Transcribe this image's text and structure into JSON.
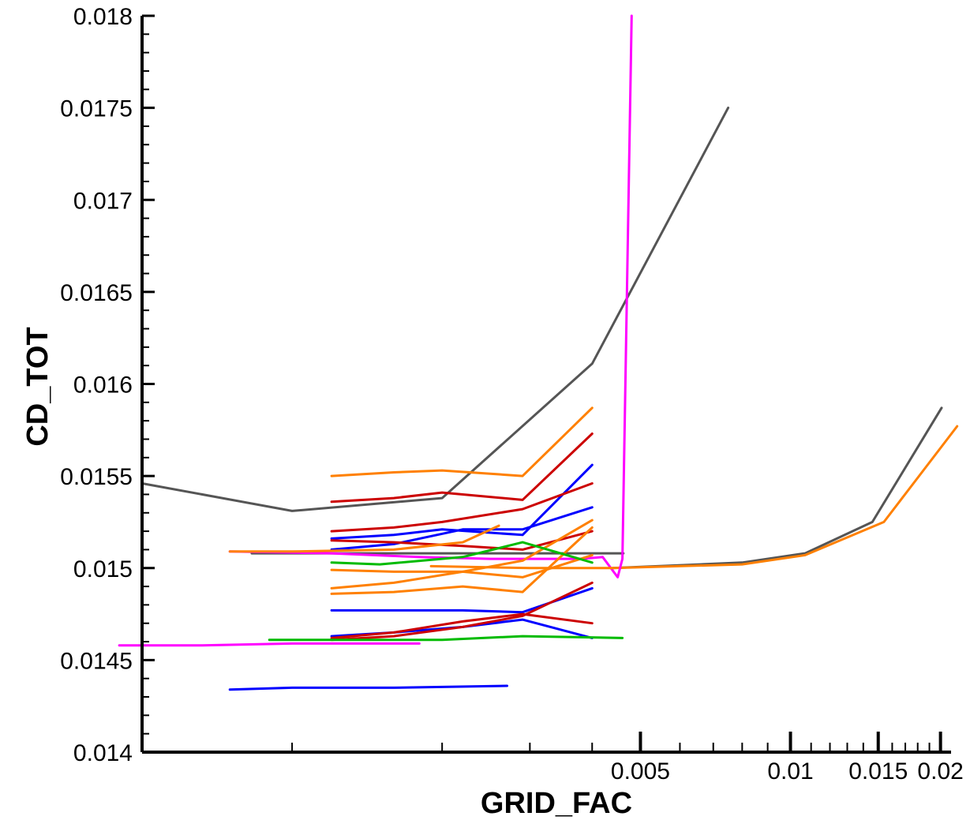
{
  "chart_data": {
    "type": "line",
    "title": "",
    "xlabel": "GRID_FAC",
    "ylabel": "CD_TOT",
    "x_scale": "log",
    "xlim": [
      0.0005,
      0.021
    ],
    "ylim": [
      0.014,
      0.018
    ],
    "grid": false,
    "x_ticks": [
      {
        "value": 0.005,
        "label": "0.005"
      },
      {
        "value": 0.01,
        "label": "0.01"
      },
      {
        "value": 0.015,
        "label": "0.015"
      },
      {
        "value": 0.02,
        "label": "0.02"
      }
    ],
    "x_minor_ticks": [
      0.001,
      0.002,
      0.003,
      0.004,
      0.006,
      0.007,
      0.008,
      0.009,
      0.011,
      0.012,
      0.013,
      0.014,
      0.016,
      0.017,
      0.018,
      0.019
    ],
    "y_ticks": [
      {
        "value": 0.014,
        "label": "0.014"
      },
      {
        "value": 0.0145,
        "label": "0.0145"
      },
      {
        "value": 0.015,
        "label": "0.015"
      },
      {
        "value": 0.0155,
        "label": "0.0155"
      },
      {
        "value": 0.016,
        "label": "0.016"
      },
      {
        "value": 0.0165,
        "label": "0.0165"
      },
      {
        "value": 0.017,
        "label": "0.017"
      },
      {
        "value": 0.0175,
        "label": "0.0175"
      },
      {
        "value": 0.018,
        "label": "0.018"
      }
    ],
    "series": [
      {
        "color": "#555555",
        "points": [
          [
            0.0005,
            0.01546
          ],
          [
            0.001,
            0.01531
          ],
          [
            0.002,
            0.01538
          ],
          [
            0.004,
            0.01611
          ],
          [
            0.0075,
            0.0175
          ]
        ]
      },
      {
        "color": "#555555",
        "points": [
          [
            0.00083,
            0.01508
          ],
          [
            0.00462,
            0.01508
          ]
        ]
      },
      {
        "color": "#555555",
        "points": [
          [
            0.0044,
            0.015
          ],
          [
            0.008,
            0.01503
          ],
          [
            0.0107,
            0.01508
          ],
          [
            0.0146,
            0.01525
          ],
          [
            0.0201,
            0.01587
          ]
        ]
      },
      {
        "color": "#ff8000",
        "points": [
          [
            0.0044,
            0.015
          ],
          [
            0.008,
            0.01502
          ],
          [
            0.0107,
            0.01507
          ],
          [
            0.0154,
            0.01525
          ],
          [
            0.0216,
            0.01577
          ]
        ]
      },
      {
        "color": "#ff00ff",
        "points": [
          [
            0.00045,
            0.01458
          ],
          [
            0.00066,
            0.01458
          ],
          [
            0.001,
            0.01459
          ],
          [
            0.0016,
            0.01459
          ],
          [
            0.0018,
            0.01459
          ]
        ]
      },
      {
        "color": "#ff00ff",
        "points": [
          [
            0.00075,
            0.01509
          ],
          [
            0.0012,
            0.01508
          ],
          [
            0.0018,
            0.01506
          ],
          [
            0.0025,
            0.01505
          ],
          [
            0.0038,
            0.01505
          ],
          [
            0.0042,
            0.01506
          ],
          [
            0.0045,
            0.01495
          ],
          [
            0.0046,
            0.01505
          ],
          [
            0.0048,
            0.018
          ]
        ]
      },
      {
        "color": "#0000ff",
        "points": [
          [
            0.00075,
            0.01434
          ],
          [
            0.001,
            0.01435
          ],
          [
            0.0016,
            0.01435
          ],
          [
            0.0027,
            0.01436
          ]
        ]
      },
      {
        "color": "#0000ff",
        "points": [
          [
            0.0012,
            0.01516
          ],
          [
            0.0016,
            0.01518
          ],
          [
            0.002,
            0.01521
          ],
          [
            0.0029,
            0.01518
          ],
          [
            0.004,
            0.01556
          ]
        ]
      },
      {
        "color": "#0000ff",
        "points": [
          [
            0.0012,
            0.0151
          ],
          [
            0.0016,
            0.01513
          ],
          [
            0.0022,
            0.01521
          ],
          [
            0.0029,
            0.01521
          ],
          [
            0.004,
            0.01533
          ]
        ]
      },
      {
        "color": "#0000ff",
        "points": [
          [
            0.0012,
            0.01477
          ],
          [
            0.0016,
            0.01477
          ],
          [
            0.0022,
            0.01477
          ],
          [
            0.0029,
            0.01476
          ],
          [
            0.004,
            0.01489
          ]
        ]
      },
      {
        "color": "#0000ff",
        "points": [
          [
            0.0012,
            0.01463
          ],
          [
            0.0016,
            0.01465
          ],
          [
            0.0022,
            0.01468
          ],
          [
            0.0029,
            0.01472
          ],
          [
            0.004,
            0.01462
          ]
        ]
      },
      {
        "color": "#cc0000",
        "points": [
          [
            0.0012,
            0.01536
          ],
          [
            0.0016,
            0.01538
          ],
          [
            0.002,
            0.01541
          ],
          [
            0.0029,
            0.01537
          ],
          [
            0.004,
            0.01573
          ]
        ]
      },
      {
        "color": "#cc0000",
        "points": [
          [
            0.0012,
            0.0152
          ],
          [
            0.0016,
            0.01522
          ],
          [
            0.002,
            0.01525
          ],
          [
            0.0029,
            0.01532
          ],
          [
            0.004,
            0.01546
          ]
        ]
      },
      {
        "color": "#cc0000",
        "points": [
          [
            0.0012,
            0.01515
          ],
          [
            0.0016,
            0.01514
          ],
          [
            0.0022,
            0.01512
          ],
          [
            0.0029,
            0.0151
          ],
          [
            0.004,
            0.0152
          ]
        ]
      },
      {
        "color": "#cc0000",
        "points": [
          [
            0.0012,
            0.01461
          ],
          [
            0.0016,
            0.01463
          ],
          [
            0.0022,
            0.01468
          ],
          [
            0.0029,
            0.01474
          ],
          [
            0.004,
            0.01492
          ]
        ]
      },
      {
        "color": "#cc0000",
        "points": [
          [
            0.0012,
            0.01462
          ],
          [
            0.0016,
            0.01465
          ],
          [
            0.0022,
            0.01471
          ],
          [
            0.0029,
            0.01475
          ],
          [
            0.004,
            0.0147
          ]
        ]
      },
      {
        "color": "#ff8000",
        "points": [
          [
            0.0012,
            0.0155
          ],
          [
            0.0016,
            0.01552
          ],
          [
            0.002,
            0.01553
          ],
          [
            0.0029,
            0.0155
          ],
          [
            0.004,
            0.01587
          ]
        ]
      },
      {
        "color": "#ff8000",
        "points": [
          [
            0.00075,
            0.01509
          ],
          [
            0.001,
            0.01509
          ],
          [
            0.0016,
            0.0151
          ],
          [
            0.0022,
            0.01514
          ],
          [
            0.0026,
            0.01523
          ]
        ]
      },
      {
        "color": "#ff8000",
        "points": [
          [
            0.0012,
            0.01499
          ],
          [
            0.0016,
            0.01498
          ],
          [
            0.0022,
            0.01498
          ],
          [
            0.0029,
            0.01504
          ],
          [
            0.004,
            0.01526
          ]
        ]
      },
      {
        "color": "#ff8000",
        "points": [
          [
            0.0012,
            0.01489
          ],
          [
            0.0016,
            0.01492
          ],
          [
            0.0022,
            0.01498
          ],
          [
            0.0029,
            0.01495
          ],
          [
            0.004,
            0.01507
          ]
        ]
      },
      {
        "color": "#ff8000",
        "points": [
          [
            0.0012,
            0.01486
          ],
          [
            0.0016,
            0.01487
          ],
          [
            0.0022,
            0.0149
          ],
          [
            0.0029,
            0.01487
          ],
          [
            0.004,
            0.01522
          ]
        ]
      },
      {
        "color": "#ff8000",
        "points": [
          [
            0.0019,
            0.01501
          ],
          [
            0.003,
            0.015
          ],
          [
            0.0044,
            0.015
          ]
        ]
      },
      {
        "color": "#00bb00",
        "points": [
          [
            0.0012,
            0.01503
          ],
          [
            0.0015,
            0.01502
          ],
          [
            0.0022,
            0.01506
          ],
          [
            0.0029,
            0.01514
          ],
          [
            0.004,
            0.01503
          ]
        ]
      },
      {
        "color": "#00bb00",
        "points": [
          [
            0.0009,
            0.01461
          ],
          [
            0.0016,
            0.01461
          ],
          [
            0.002,
            0.01461
          ],
          [
            0.0029,
            0.01463
          ],
          [
            0.0046,
            0.01462
          ]
        ]
      }
    ]
  }
}
